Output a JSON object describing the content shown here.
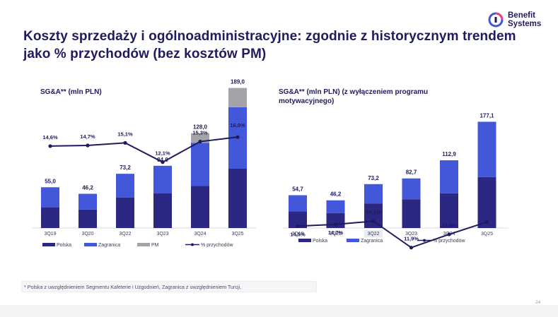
{
  "logo": {
    "line1": "Benefit",
    "line2": "Systems"
  },
  "title": "Koszty sprzedaży i ogólnoadministracyjne: zgodnie z historycznym trendem jako % przychodów (bez kosztów PM)",
  "footnote": "* Polska z uwzględnieniem Segmentu Kafeterie i Uzgodnień, Zagranica z uwzględnieniem Turcji.",
  "page_number": "24",
  "colors": {
    "polska": "#2a2882",
    "zagranica": "#4257d9",
    "pm": "#a3a3a8",
    "line": "#1e1b5e"
  },
  "chart_data": [
    {
      "type": "bar",
      "stacked": true,
      "title": "SG&A** (mln PLN)",
      "categories": [
        "3Q19",
        "3Q20",
        "3Q22",
        "3Q23",
        "3Q24",
        "3Q25"
      ],
      "series": [
        {
          "name": "Polska",
          "values": [
            28,
            25,
            41,
            47,
            57,
            80
          ]
        },
        {
          "name": "Zagranica",
          "values": [
            27,
            21.2,
            32.2,
            37,
            58,
            83
          ]
        },
        {
          "name": "PM",
          "values": [
            0,
            0,
            0,
            0,
            13,
            26
          ]
        }
      ],
      "totals": [
        "55,0",
        "46,2",
        "73,2",
        "84,0",
        "128,0",
        "189,0"
      ],
      "line": {
        "name": "% przychodów",
        "values": [
          14.6,
          14.7,
          15.1,
          12.1,
          15.3,
          16.0
        ],
        "labels": [
          "14,6%",
          "14,7%",
          "15,1%",
          "12,1%",
          "15,3%",
          "16,0%"
        ]
      },
      "legend": [
        "Polska",
        "Zagranica",
        "PM",
        "% przychodów"
      ]
    },
    {
      "type": "bar",
      "stacked": true,
      "title": "SG&A** (mln PLN) (z wyłączeniem programu motywacyjnego)",
      "categories": [
        "3Q19",
        "3Q20",
        "3Q22",
        "3Q23",
        "3Q24",
        "3Q25"
      ],
      "series": [
        {
          "name": "Polska",
          "values": [
            28,
            25,
            41,
            48,
            58,
            85
          ]
        },
        {
          "name": "Zagranica",
          "values": [
            26.7,
            21.2,
            32.2,
            34.7,
            54.9,
            92.1
          ]
        }
      ],
      "totals": [
        "54,7",
        "46,2",
        "73,2",
        "82,7",
        "112,9",
        "177,1"
      ],
      "line": {
        "name": "% przychodów",
        "values": [
          14.5,
          14.7,
          15.1,
          11.9,
          13.5,
          15.0
        ],
        "labels": [
          "14,5%",
          "14,7%",
          "15,1%",
          "11,9%",
          "13,5%",
          "15,0%"
        ]
      },
      "legend": [
        "Polska",
        "Zagranica",
        "% przychodów"
      ]
    }
  ]
}
